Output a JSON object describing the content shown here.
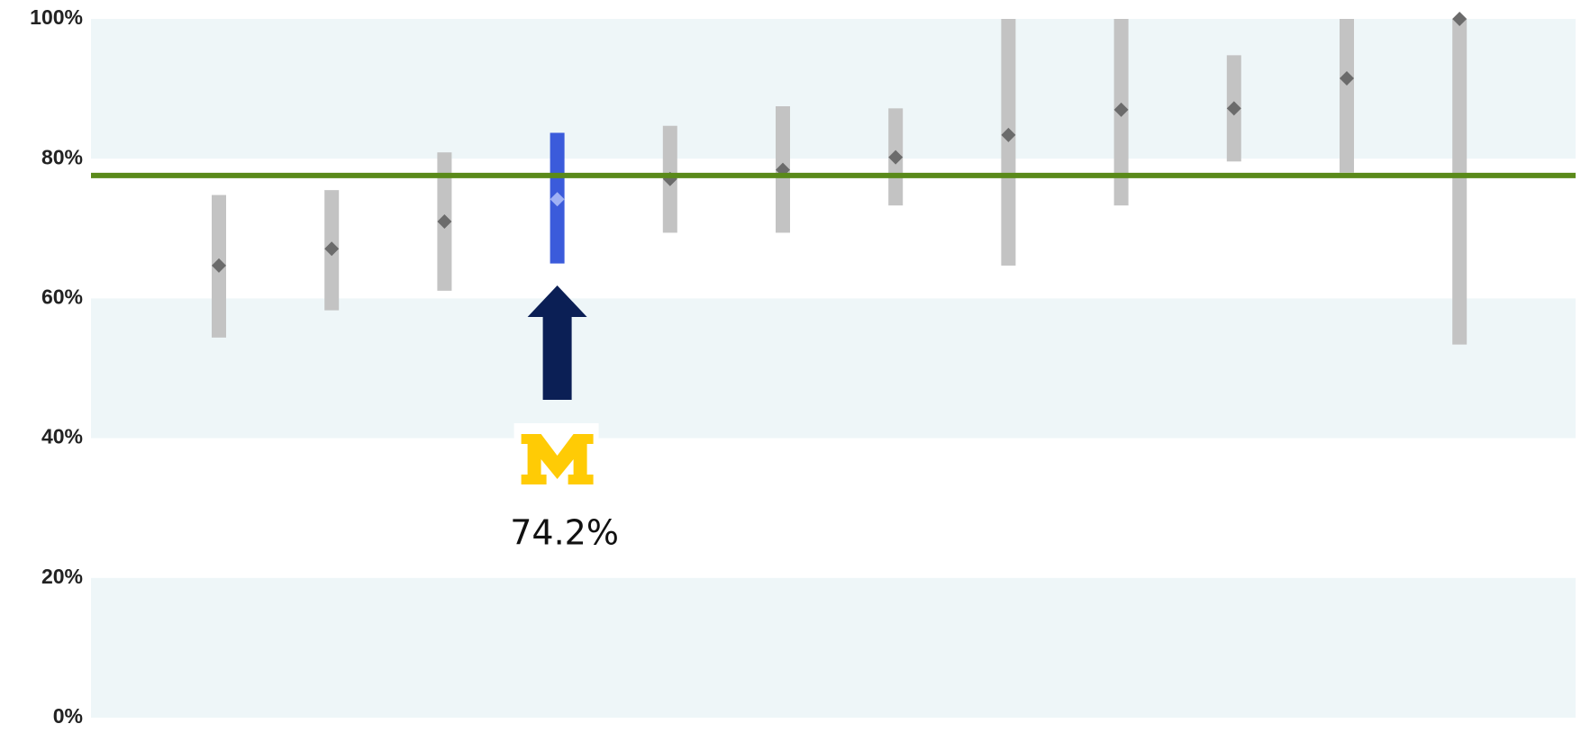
{
  "chart_data": {
    "type": "range-dot",
    "categories": [
      null,
      null,
      null,
      null,
      null,
      null,
      null,
      null,
      null,
      null,
      null,
      null
    ],
    "values": [
      64.7,
      67.1,
      71.0,
      74.2,
      77.1,
      78.4,
      80.2,
      83.4,
      87.0,
      87.2,
      91.5,
      100
    ],
    "lows": [
      54.4,
      58.3,
      61.1,
      65.0,
      69.4,
      69.4,
      73.3,
      64.7,
      73.3,
      79.6,
      78.0,
      53.4
    ],
    "highs": [
      74.8,
      75.5,
      80.9,
      83.7,
      84.7,
      87.5,
      87.2,
      100,
      100,
      94.8,
      100,
      100
    ],
    "color": "#c3c3c3",
    "dot_color": "#6b6b6b",
    "highlight": 3,
    "highlight_color": "#3b5bdb",
    "highlight_dot_color": "#9fb1f5",
    "reference": 77.6,
    "reference_color": "#5a8a1a",
    "annotation": {
      "index": 3,
      "text": "74.2%"
    },
    "ylim": [
      0,
      100
    ],
    "yticks": [
      {
        "value": 0,
        "label": "0%"
      },
      {
        "value": 20,
        "label": "20%"
      },
      {
        "value": 40,
        "label": "40%"
      },
      {
        "value": 60,
        "label": "60%"
      },
      {
        "value": 80,
        "label": "80%"
      },
      {
        "value": 100,
        "label": "100%"
      }
    ],
    "bands": true
  }
}
